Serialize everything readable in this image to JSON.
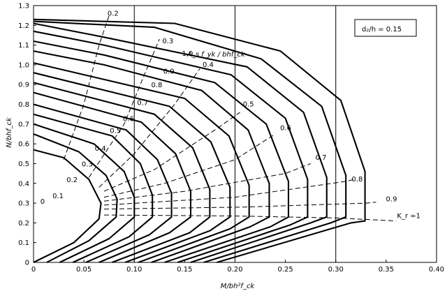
{
  "chart_data": {
    "type": "line",
    "title": "",
    "xlabel": "M/bh²f_ck",
    "ylabel": "N/bhf_ck",
    "xlim": [
      0,
      0.4
    ],
    "ylim": [
      0,
      1.3
    ],
    "xticks": [
      "0",
      "0.05",
      "0.10",
      "0.15",
      "0.20",
      "0.25",
      "0.30",
      "0.35",
      "0.40"
    ],
    "yticks": [
      "0",
      "0.1",
      "0.2",
      "0.3",
      "0.4",
      "0.5",
      "0.6",
      "0.7",
      "0.8",
      "0.9",
      "1.0",
      "1.1",
      "1.2",
      "1.3"
    ],
    "grid": "major x only (every 0.10)",
    "annotation_box": "d₂/h = 0.15",
    "family_label": "A_s f_yk / bhf_ck",
    "series": [
      {
        "name": "0",
        "points": [
          [
            0,
            0
          ],
          [
            0.04,
            0.1
          ],
          [
            0.065,
            0.22
          ],
          [
            0.067,
            0.3
          ],
          [
            0.055,
            0.42
          ],
          [
            0.03,
            0.53
          ],
          [
            0,
            0.57
          ]
        ]
      },
      {
        "name": "0.1",
        "points": [
          [
            0.013,
            0
          ],
          [
            0.055,
            0.11
          ],
          [
            0.082,
            0.23
          ],
          [
            0.083,
            0.32
          ],
          [
            0.072,
            0.44
          ],
          [
            0.045,
            0.56
          ],
          [
            0,
            0.65
          ]
        ]
      },
      {
        "name": "0.2",
        "points": [
          [
            0.026,
            0
          ],
          [
            0.075,
            0.12
          ],
          [
            0.1,
            0.23
          ],
          [
            0.1,
            0.33
          ],
          [
            0.09,
            0.46
          ],
          [
            0.06,
            0.6
          ],
          [
            0,
            0.7
          ]
        ]
      },
      {
        "name": "0.3",
        "points": [
          [
            0.039,
            0
          ],
          [
            0.095,
            0.13
          ],
          [
            0.118,
            0.23
          ],
          [
            0.118,
            0.34
          ],
          [
            0.106,
            0.5
          ],
          [
            0.078,
            0.64
          ],
          [
            0,
            0.75
          ]
        ]
      },
      {
        "name": "0.4",
        "points": [
          [
            0.052,
            0
          ],
          [
            0.115,
            0.14
          ],
          [
            0.137,
            0.23
          ],
          [
            0.137,
            0.35
          ],
          [
            0.123,
            0.52
          ],
          [
            0.092,
            0.67
          ],
          [
            0,
            0.8
          ]
        ]
      },
      {
        "name": "0.5",
        "points": [
          [
            0.065,
            0
          ],
          [
            0.135,
            0.15
          ],
          [
            0.156,
            0.23
          ],
          [
            0.156,
            0.36
          ],
          [
            0.141,
            0.55
          ],
          [
            0.107,
            0.71
          ],
          [
            0,
            0.86
          ]
        ]
      },
      {
        "name": "0.6",
        "points": [
          [
            0.078,
            0
          ],
          [
            0.155,
            0.15
          ],
          [
            0.175,
            0.23
          ],
          [
            0.175,
            0.37
          ],
          [
            0.158,
            0.58
          ],
          [
            0.12,
            0.75
          ],
          [
            0,
            0.91
          ]
        ]
      },
      {
        "name": "0.7",
        "points": [
          [
            0.091,
            0
          ],
          [
            0.175,
            0.16
          ],
          [
            0.195,
            0.23
          ],
          [
            0.195,
            0.38
          ],
          [
            0.176,
            0.61
          ],
          [
            0.135,
            0.79
          ],
          [
            0,
            0.96
          ]
        ]
      },
      {
        "name": "0.8",
        "points": [
          [
            0.104,
            0
          ],
          [
            0.195,
            0.17
          ],
          [
            0.214,
            0.23
          ],
          [
            0.214,
            0.39
          ],
          [
            0.194,
            0.64
          ],
          [
            0.15,
            0.83
          ],
          [
            0,
            1.01
          ]
        ]
      },
      {
        "name": "0.9",
        "points": [
          [
            0.117,
            0
          ],
          [
            0.215,
            0.18
          ],
          [
            0.234,
            0.23
          ],
          [
            0.234,
            0.4
          ],
          [
            0.213,
            0.67
          ],
          [
            0.167,
            0.87
          ],
          [
            0.07,
            1.0
          ],
          [
            0,
            1.07
          ]
        ]
      },
      {
        "name": "1.0",
        "points": [
          [
            0.13,
            0
          ],
          [
            0.235,
            0.18
          ],
          [
            0.253,
            0.23
          ],
          [
            0.253,
            0.41
          ],
          [
            0.231,
            0.7
          ],
          [
            0.18,
            0.91
          ],
          [
            0.07,
            1.05
          ],
          [
            0,
            1.12
          ]
        ]
      },
      {
        "name": "",
        "points": [
          [
            0.143,
            0
          ],
          [
            0.255,
            0.19
          ],
          [
            0.272,
            0.23
          ],
          [
            0.272,
            0.42
          ],
          [
            0.25,
            0.73
          ],
          [
            0.196,
            0.95
          ],
          [
            0.07,
            1.1
          ],
          [
            0,
            1.17
          ]
        ]
      },
      {
        "name": "",
        "points": [
          [
            0.156,
            0
          ],
          [
            0.275,
            0.2
          ],
          [
            0.291,
            0.23
          ],
          [
            0.291,
            0.43
          ],
          [
            0.268,
            0.76
          ],
          [
            0.212,
            0.99
          ],
          [
            0.07,
            1.14
          ],
          [
            0,
            1.21
          ]
        ]
      },
      {
        "name": "",
        "points": [
          [
            0.169,
            0
          ],
          [
            0.295,
            0.2
          ],
          [
            0.31,
            0.23
          ],
          [
            0.31,
            0.44
          ],
          [
            0.286,
            0.79
          ],
          [
            0.226,
            1.03
          ],
          [
            0.12,
            1.19
          ],
          [
            0,
            1.22
          ]
        ]
      },
      {
        "name": "",
        "points": [
          [
            0.182,
            0
          ],
          [
            0.315,
            0.2
          ],
          [
            0.329,
            0.21
          ],
          [
            0.329,
            0.46
          ],
          [
            0.305,
            0.82
          ],
          [
            0.245,
            1.07
          ],
          [
            0.14,
            1.21
          ],
          [
            0,
            1.23
          ]
        ]
      }
    ],
    "kr_lines": [
      {
        "name": "0.2",
        "points": [
          [
            0.03,
            0.52
          ],
          [
            0.05,
            0.8
          ],
          [
            0.065,
            1.1
          ],
          [
            0.075,
            1.25
          ]
        ]
      },
      {
        "name": "0.3",
        "points": [
          [
            0.055,
            0.43
          ],
          [
            0.09,
            0.7
          ],
          [
            0.11,
            0.95
          ],
          [
            0.125,
            1.13
          ]
        ]
      },
      {
        "name": "0.4",
        "points": [
          [
            0.065,
            0.38
          ],
          [
            0.1,
            0.55
          ],
          [
            0.14,
            0.8
          ],
          [
            0.165,
            0.98
          ]
        ]
      },
      {
        "name": "0.5",
        "points": [
          [
            0.07,
            0.36
          ],
          [
            0.12,
            0.47
          ],
          [
            0.18,
            0.67
          ],
          [
            0.205,
            0.76
          ]
        ]
      },
      {
        "name": "0.6",
        "points": [
          [
            0.07,
            0.33
          ],
          [
            0.13,
            0.4
          ],
          [
            0.2,
            0.52
          ],
          [
            0.24,
            0.65
          ]
        ]
      },
      {
        "name": "0.7",
        "points": [
          [
            0.07,
            0.31
          ],
          [
            0.15,
            0.36
          ],
          [
            0.25,
            0.45
          ],
          [
            0.275,
            0.5
          ]
        ]
      },
      {
        "name": "0.8",
        "points": [
          [
            0.07,
            0.29
          ],
          [
            0.2,
            0.33
          ],
          [
            0.31,
            0.41
          ],
          [
            0.318,
            0.42
          ]
        ]
      },
      {
        "name": "0.9",
        "points": [
          [
            0.07,
            0.27
          ],
          [
            0.21,
            0.28
          ],
          [
            0.33,
            0.3
          ],
          [
            0.34,
            0.305
          ]
        ]
      },
      {
        "name": "K_r = 1",
        "points": [
          [
            0.07,
            0.24
          ],
          [
            0.2,
            0.235
          ],
          [
            0.3,
            0.225
          ],
          [
            0.36,
            0.21
          ]
        ]
      }
    ],
    "kr_labels": [
      {
        "text": "0.2",
        "x": 0.0706,
        "y": 1.26
      },
      {
        "text": "0.3",
        "x": 0.125,
        "y": 1.12
      },
      {
        "text": "0.4",
        "x": 0.165,
        "y": 1.0
      },
      {
        "text": "0.5",
        "x": 0.205,
        "y": 0.8
      },
      {
        "text": "0.6",
        "x": 0.242,
        "y": 0.68
      },
      {
        "text": "0.7",
        "x": 0.277,
        "y": 0.53
      },
      {
        "text": "0.8",
        "x": 0.313,
        "y": 0.42
      },
      {
        "text": "0.9",
        "x": 0.347,
        "y": 0.32
      },
      {
        "text": "K_r =1",
        "x": 0.358,
        "y": 0.235
      }
    ],
    "curve_labels": [
      {
        "text": "1.0",
        "x": 0.1445,
        "y": 1.06
      },
      {
        "text": "0.9",
        "x": 0.126,
        "y": 0.97
      },
      {
        "text": "0.8",
        "x": 0.114,
        "y": 0.9
      },
      {
        "text": "0.7",
        "x": 0.1,
        "y": 0.81
      },
      {
        "text": "0.6",
        "x": 0.086,
        "y": 0.73
      },
      {
        "text": "0.5",
        "x": 0.073,
        "y": 0.67
      },
      {
        "text": "0.4",
        "x": 0.058,
        "y": 0.58
      },
      {
        "text": "0.3",
        "x": 0.045,
        "y": 0.5
      },
      {
        "text": "0.2",
        "x": 0.03,
        "y": 0.42
      },
      {
        "text": "0.1",
        "x": 0.016,
        "y": 0.34
      },
      {
        "text": "0",
        "x": 0.004,
        "y": 0.31
      }
    ]
  }
}
